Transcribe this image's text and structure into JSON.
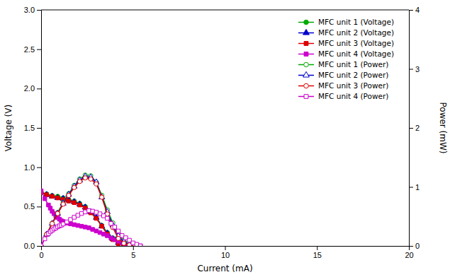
{
  "chart_data": {
    "type": "line",
    "xlabel": "Current (mA)",
    "ylabel": "Voltage (V)",
    "y2label": "Power (mW)",
    "xlim": [
      0,
      20
    ],
    "ylim": [
      0,
      3.0
    ],
    "y2lim": [
      0,
      4.0
    ],
    "xticks": [
      0,
      5,
      10,
      15,
      20
    ],
    "yticks": [
      {
        "value": 0.0,
        "label": "0.0"
      },
      0.5,
      {
        "value": 1.0,
        "label": "1.0"
      },
      1.5,
      {
        "value": 2.0,
        "label": "2.0"
      },
      2.5,
      {
        "value": 3.0,
        "label": "3.0"
      }
    ],
    "y2ticks": [
      0,
      1,
      2,
      3,
      4
    ],
    "grid": false,
    "legend": "upper right",
    "series": [
      {
        "name": "MFC unit 1 (Voltage)",
        "color": "#00aa00",
        "marker": "circle",
        "x": [
          0.0,
          0.3,
          0.6,
          0.9,
          1.2,
          1.5,
          1.8,
          2.1,
          2.4,
          2.7,
          3.0,
          3.3,
          3.6,
          3.9,
          4.2,
          4.5,
          4.8,
          5.1
        ],
        "values": [
          0.68,
          0.66,
          0.64,
          0.63,
          0.61,
          0.59,
          0.57,
          0.54,
          0.5,
          0.44,
          0.36,
          0.26,
          0.17,
          0.1,
          0.05,
          0.02,
          0.01,
          0.0
        ]
      },
      {
        "name": "MFC unit 2 (Voltage)",
        "color": "#0000cc",
        "marker": "triangle",
        "x": [
          0.0,
          0.3,
          0.6,
          0.9,
          1.2,
          1.5,
          1.8,
          2.1,
          2.4,
          2.7,
          3.0,
          3.3,
          3.6,
          3.9,
          4.2,
          4.5,
          4.8,
          5.1
        ],
        "values": [
          0.68,
          0.65,
          0.63,
          0.61,
          0.6,
          0.58,
          0.56,
          0.53,
          0.49,
          0.43,
          0.36,
          0.25,
          0.16,
          0.09,
          0.04,
          0.015,
          0.005,
          0.0
        ]
      },
      {
        "name": "MFC unit 3 (Voltage)",
        "color": "#dd0000",
        "marker": "square",
        "x": [
          0.0,
          0.3,
          0.6,
          0.9,
          1.2,
          1.5,
          1.8,
          2.1,
          2.4,
          2.7,
          3.0,
          3.3,
          3.6,
          3.9,
          4.2,
          4.5,
          4.8,
          5.1
        ],
        "values": [
          0.68,
          0.65,
          0.63,
          0.61,
          0.59,
          0.57,
          0.55,
          0.52,
          0.48,
          0.42,
          0.35,
          0.25,
          0.15,
          0.08,
          0.03,
          0.01,
          0.003,
          0.0
        ]
      },
      {
        "name": "MFC unit 4 (Voltage)",
        "color": "#cc00cc",
        "marker": "square",
        "x": [
          0.0,
          0.2,
          0.4,
          0.5,
          0.6,
          0.7,
          0.8,
          0.9,
          1.0,
          1.1,
          1.2,
          1.4,
          1.6,
          1.8,
          2.0,
          2.2,
          2.4,
          2.6,
          2.8,
          3.0,
          3.2,
          3.4,
          3.6,
          3.8,
          4.0,
          4.2,
          4.4,
          4.6,
          4.8,
          5.0,
          5.2,
          5.4
        ],
        "values": [
          0.7,
          0.6,
          0.52,
          0.48,
          0.44,
          0.41,
          0.38,
          0.36,
          0.34,
          0.32,
          0.31,
          0.29,
          0.28,
          0.27,
          0.26,
          0.25,
          0.24,
          0.23,
          0.21,
          0.19,
          0.17,
          0.15,
          0.13,
          0.1,
          0.08,
          0.06,
          0.04,
          0.03,
          0.02,
          0.01,
          0.005,
          0.0
        ]
      },
      {
        "name": "MFC unit 1 (Power)",
        "color": "#00aa00",
        "marker": "circle-open",
        "axis": "y2",
        "x": [
          0.0,
          0.3,
          0.6,
          0.9,
          1.2,
          1.5,
          1.8,
          2.1,
          2.4,
          2.7,
          3.0,
          3.3,
          3.6,
          3.9,
          4.2,
          4.5,
          4.8,
          5.1
        ],
        "values": [
          0.0,
          0.198,
          0.384,
          0.567,
          0.732,
          0.885,
          1.026,
          1.134,
          1.2,
          1.188,
          1.08,
          0.858,
          0.612,
          0.39,
          0.21,
          0.09,
          0.048,
          0.0
        ]
      },
      {
        "name": "MFC unit 2 (Power)",
        "color": "#0000cc",
        "marker": "triangle-open",
        "axis": "y2",
        "x": [
          0.0,
          0.3,
          0.6,
          0.9,
          1.2,
          1.5,
          1.8,
          2.1,
          2.4,
          2.7,
          3.0,
          3.3,
          3.6,
          3.9,
          4.2,
          4.5,
          4.8,
          5.1
        ],
        "values": [
          0.0,
          0.195,
          0.378,
          0.549,
          0.72,
          0.87,
          1.008,
          1.113,
          1.176,
          1.161,
          1.08,
          0.825,
          0.576,
          0.351,
          0.168,
          0.0675,
          0.024,
          0.0
        ]
      },
      {
        "name": "MFC unit 3 (Power)",
        "color": "#dd0000",
        "marker": "circle-open",
        "axis": "y2",
        "x": [
          0.0,
          0.3,
          0.6,
          0.9,
          1.2,
          1.5,
          1.8,
          2.1,
          2.4,
          2.7,
          3.0,
          3.3,
          3.6,
          3.9,
          4.2,
          4.5,
          4.8,
          5.1
        ],
        "values": [
          0.0,
          0.195,
          0.378,
          0.549,
          0.708,
          0.855,
          0.99,
          1.092,
          1.152,
          1.134,
          1.05,
          0.825,
          0.54,
          0.312,
          0.126,
          0.045,
          0.014,
          0.0
        ]
      },
      {
        "name": "MFC unit 4 (Power)",
        "color": "#cc00cc",
        "marker": "square-open",
        "axis": "y2",
        "x": [
          0.0,
          0.2,
          0.4,
          0.5,
          0.6,
          0.7,
          0.8,
          0.9,
          1.0,
          1.1,
          1.2,
          1.4,
          1.6,
          1.8,
          2.0,
          2.2,
          2.4,
          2.6,
          2.8,
          3.0,
          3.2,
          3.4,
          3.6,
          3.8,
          4.0,
          4.2,
          4.4,
          4.6,
          4.8,
          5.0,
          5.2,
          5.4
        ],
        "values": [
          0.0,
          0.12,
          0.208,
          0.24,
          0.264,
          0.287,
          0.304,
          0.324,
          0.34,
          0.352,
          0.372,
          0.406,
          0.448,
          0.486,
          0.52,
          0.55,
          0.576,
          0.598,
          0.588,
          0.57,
          0.544,
          0.51,
          0.468,
          0.38,
          0.32,
          0.252,
          0.176,
          0.138,
          0.096,
          0.05,
          0.026,
          0.0
        ]
      }
    ]
  }
}
